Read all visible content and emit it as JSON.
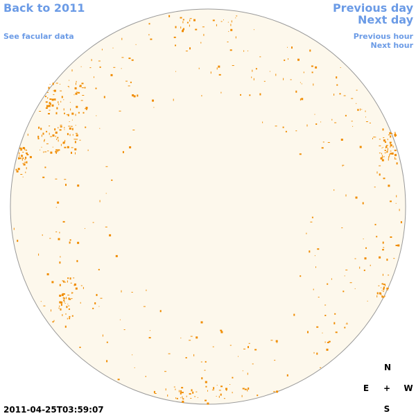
{
  "nav": {
    "back": "Back to 2011",
    "facular": "See facular data",
    "previous_day": "Previous day",
    "next_day": "Next day",
    "previous_hour": "Previous hour",
    "next_hour": "Next hour"
  },
  "timestamp": "2011-04-25T03:59:07",
  "compass": {
    "north": "N",
    "east": "E",
    "center": "+",
    "west": "W",
    "south": "S"
  }
}
